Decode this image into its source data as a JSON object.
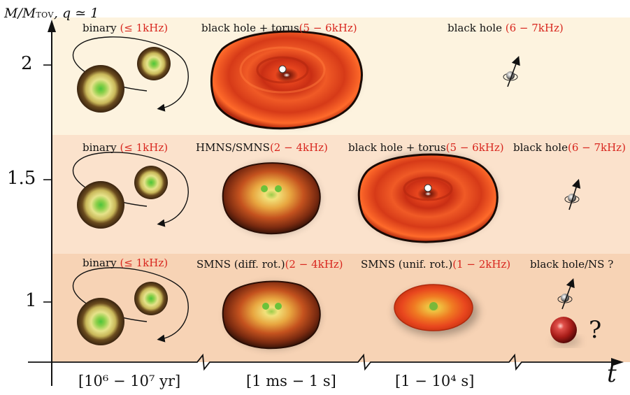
{
  "axes": {
    "ylabel_main": "M/M",
    "ylabel_sub": "TOV",
    "ylabel_tail": ", q ≃ 1",
    "t_label": "t",
    "y_ticks": [
      "2",
      "1.5",
      "1"
    ],
    "x_ticks": [
      "[10⁶ − 10⁷ yr]",
      "[1 ms − 1 s]",
      "[1 − 10⁴ s]"
    ]
  },
  "rows": [
    {
      "mass": "2",
      "stages": [
        {
          "name": "binary",
          "freq": "(≤ 1kHz)"
        },
        {
          "name": "black hole + torus",
          "freq": "(5 − 6kHz)"
        },
        {
          "name": "black hole",
          "freq": "(6 − 7kHz)"
        }
      ]
    },
    {
      "mass": "1.5",
      "stages": [
        {
          "name": "binary",
          "freq": "(≤ 1kHz)"
        },
        {
          "name": "HMNS/SMNS",
          "freq": "(2 − 4kHz)"
        },
        {
          "name": "black hole + torus",
          "freq": "(5 − 6kHz)"
        },
        {
          "name": "black hole",
          "freq": "(6 − 7kHz)"
        }
      ]
    },
    {
      "mass": "1",
      "stages": [
        {
          "name": "binary",
          "freq": "(≤ 1kHz)"
        },
        {
          "name": "SMNS (diff. rot.)",
          "freq": "(2 − 4kHz)"
        },
        {
          "name": "SMNS (unif. rot.)",
          "freq": "(1 − 2kHz)"
        },
        {
          "name": "black hole/NS ?",
          "freq": ""
        }
      ]
    }
  ],
  "question_mark": "?",
  "colors": {
    "band_top": "#fdf3df",
    "band_mid": "#fbe2cc",
    "band_bot": "#f7d3b5",
    "freq_red": "#d8261e",
    "torus": "#e8461e",
    "star_core": "#4cc43a"
  }
}
